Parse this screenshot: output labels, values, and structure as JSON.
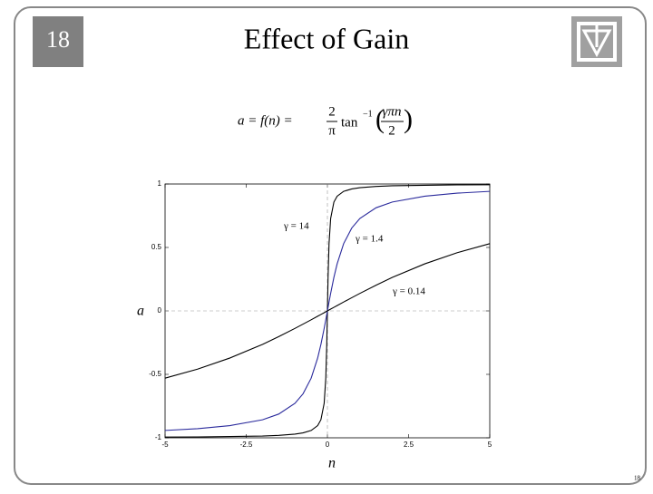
{
  "slide_number": "18",
  "title": "Effect of Gain",
  "formula": {
    "lhs": "a = f(n) =",
    "coef_num": "2",
    "coef_den": "π",
    "func": "tan",
    "func_sup": "−1",
    "arg_num": "γπn",
    "arg_den": "2"
  },
  "footer_number": "18",
  "chart_data": {
    "type": "line",
    "x_label": "n",
    "y_label": "a",
    "x": [
      -5,
      -4,
      -3,
      -2,
      -1.5,
      -1,
      -0.75,
      -0.5,
      -0.3,
      -0.2,
      -0.1,
      -0.05,
      -0.02,
      0,
      0.02,
      0.05,
      0.1,
      0.2,
      0.3,
      0.5,
      0.75,
      1,
      1.5,
      2,
      3,
      4,
      5
    ],
    "series": [
      {
        "name": "γ = 14",
        "color": "#000000",
        "values": [
          -0.994,
          -0.993,
          -0.99,
          -0.986,
          -0.981,
          -0.971,
          -0.961,
          -0.942,
          -0.904,
          -0.858,
          -0.728,
          -0.53,
          -0.264,
          0,
          0.264,
          0.53,
          0.728,
          0.858,
          0.904,
          0.942,
          0.961,
          0.971,
          0.981,
          0.986,
          0.99,
          0.993,
          0.994
        ]
      },
      {
        "name": "γ = 1.4",
        "color": "#2a2a9c",
        "values": [
          -0.942,
          -0.928,
          -0.904,
          -0.858,
          -0.813,
          -0.728,
          -0.653,
          -0.53,
          -0.371,
          -0.264,
          -0.138,
          -0.07,
          -0.028,
          0,
          0.028,
          0.07,
          0.138,
          0.264,
          0.371,
          0.53,
          0.653,
          0.728,
          0.813,
          0.858,
          0.904,
          0.928,
          0.942
        ]
      },
      {
        "name": "γ = 0.14",
        "color": "#000000",
        "values": [
          -0.53,
          -0.459,
          -0.371,
          -0.264,
          -0.203,
          -0.138,
          -0.104,
          -0.07,
          -0.042,
          -0.028,
          -0.014,
          -0.007,
          -0.003,
          0,
          0.003,
          0.007,
          0.014,
          0.028,
          0.042,
          0.07,
          0.104,
          0.138,
          0.203,
          0.264,
          0.371,
          0.459,
          0.53
        ]
      }
    ],
    "xlim": [
      -5,
      5
    ],
    "xticks": [
      -5,
      -2.5,
      0,
      2.5,
      5
    ],
    "ylim": [
      -1,
      1
    ],
    "yticks": [
      -1,
      -0.5,
      0,
      0.5,
      1
    ],
    "grid": false,
    "zero_lines": true
  }
}
